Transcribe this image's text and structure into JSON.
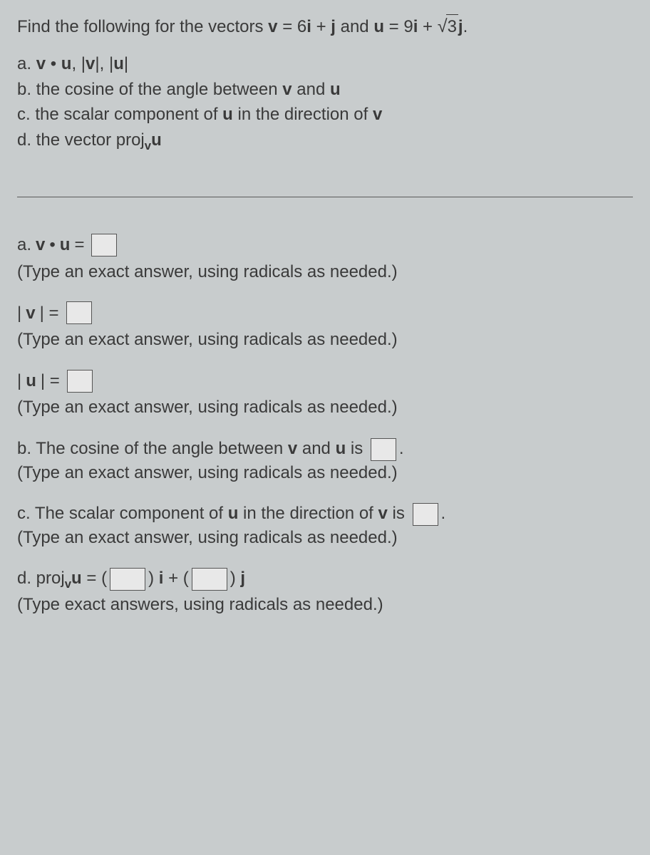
{
  "question": {
    "prompt_prefix": "Find the following for the vectors ",
    "v_label": "v",
    "eq1": " = 6",
    "i1": "i",
    "plus1": " + ",
    "j1": "j",
    "and": " and ",
    "u_label": "u",
    "eq2": " = 9",
    "i2": "i",
    "plus2": " + ",
    "sqrt_arg": "3",
    "j2": "j",
    "period": "."
  },
  "parts": {
    "a_prefix": "a. ",
    "a_v": "v",
    "a_dot": " • ",
    "a_u": "u",
    "a_comma1": ", |",
    "a_vbar": "v",
    "a_comma2": "|, |",
    "a_ubar": "u",
    "a_end": "|",
    "b": "b. the cosine of the angle between ",
    "b_v": "v",
    "b_and": " and ",
    "b_u": "u",
    "c": "c. the scalar component of ",
    "c_u": "u",
    "c_mid": " in the direction of ",
    "c_v": "v",
    "d": "d. the vector proj",
    "d_sub": "v",
    "d_u": "u"
  },
  "answers": {
    "a_label": "a. ",
    "a_v": "v",
    "a_dot": " • ",
    "a_u": "u",
    "a_eq": " = ",
    "hint_exact": "(Type an exact answer, using radicals as needed.)",
    "hint_exact_plural": "(Type exact answers, using radicals as needed.)",
    "mag_v_open": "|",
    "mag_v": "v",
    "mag_v_close": "| = ",
    "mag_u_open": "|",
    "mag_u": "u",
    "mag_u_close": "| = ",
    "b_text1": "b. The cosine of the angle between ",
    "b_v": "v",
    "b_and": " and ",
    "b_u": "u",
    "b_is": " is ",
    "b_period": ".",
    "c_text1": "c. The scalar component of ",
    "c_u": "u",
    "c_mid": " in the direction of ",
    "c_v": "v",
    "c_is": " is ",
    "c_period": ".",
    "d_label": "d. proj",
    "d_sub": "v",
    "d_u": "u",
    "d_eq": " = (",
    "d_mid": ") ",
    "d_i": "i",
    "d_plus": " + (",
    "d_close": ") ",
    "d_j": "j"
  }
}
